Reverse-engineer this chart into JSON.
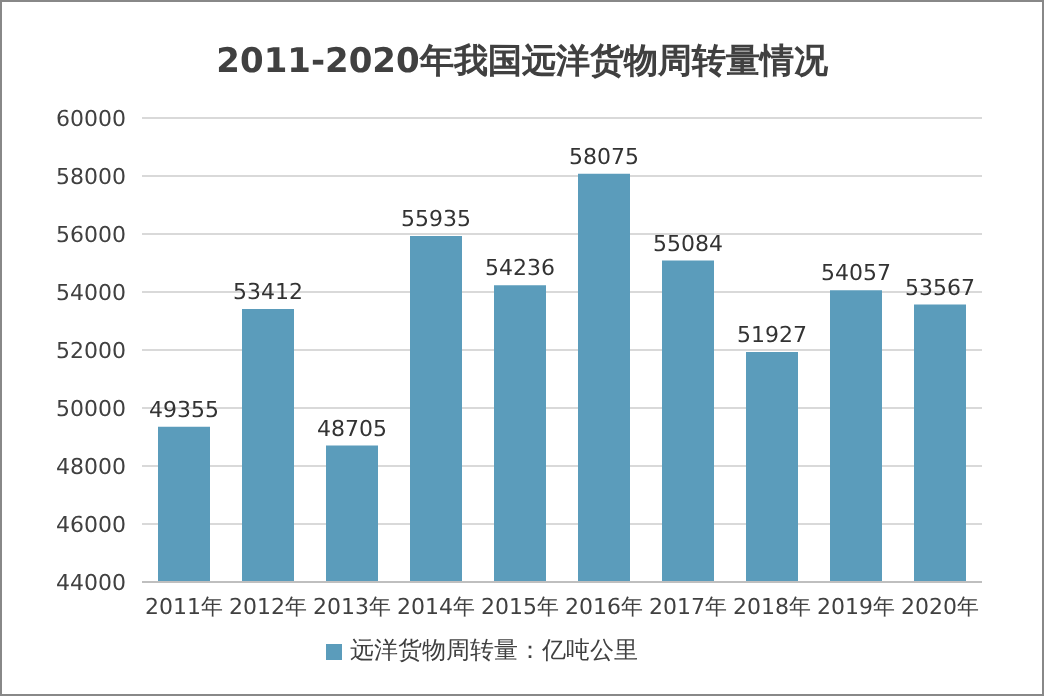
{
  "chart_data": {
    "type": "bar",
    "title": "2011-2020年我国远洋货物周转量情况",
    "categories": [
      "2011年",
      "2012年",
      "2013年",
      "2014年",
      "2015年",
      "2016年",
      "2017年",
      "2018年",
      "2019年",
      "2020年"
    ],
    "series": [
      {
        "name": "远洋货物周转量：亿吨公里",
        "color": "#5b9cbb",
        "values": [
          49355,
          53412,
          48705,
          55935,
          54236,
          58075,
          55084,
          51927,
          54057,
          53567
        ]
      }
    ],
    "ylim": [
      44000,
      60000
    ],
    "yticks": [
      44000,
      46000,
      48000,
      50000,
      52000,
      54000,
      56000,
      58000,
      60000
    ],
    "grid": "y",
    "legend": "bottom",
    "data_labels": true
  }
}
